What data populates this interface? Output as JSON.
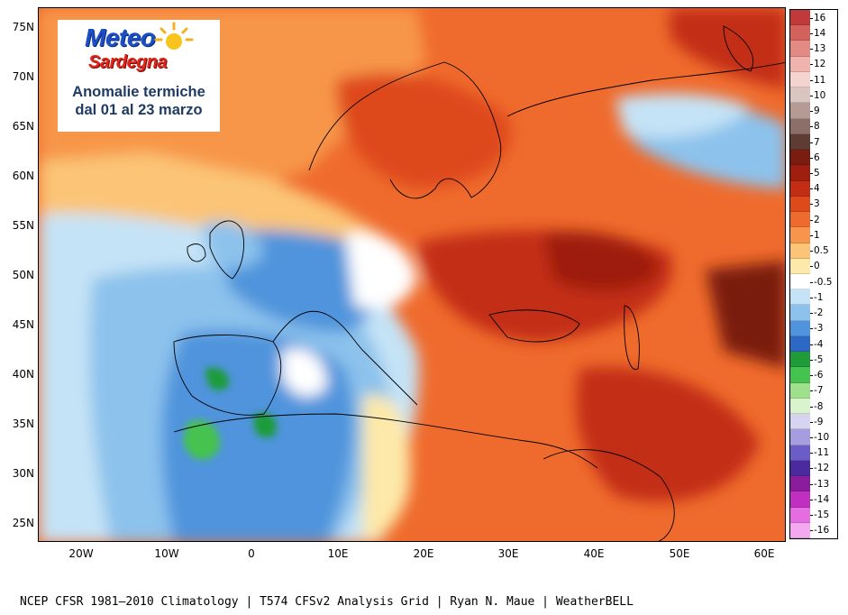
{
  "logo": {
    "brand_line1": "Meteo",
    "brand_line2": "Sardegna",
    "title_line1": "Anomalie termiche",
    "title_line2": "dal 01 al 23 marzo"
  },
  "axes": {
    "lat_labels": [
      "75N",
      "70N",
      "65N",
      "60N",
      "55N",
      "50N",
      "45N",
      "40N",
      "35N",
      "30N",
      "25N"
    ],
    "lon_labels": [
      "20W",
      "10W",
      "0",
      "10E",
      "20E",
      "30E",
      "40E",
      "50E",
      "60E"
    ]
  },
  "colorbar": {
    "levels": [
      {
        "label": "16",
        "color": "#c0393b"
      },
      {
        "label": "14",
        "color": "#d4625c"
      },
      {
        "label": "13",
        "color": "#e48a84"
      },
      {
        "label": "12",
        "color": "#f1b3ae"
      },
      {
        "label": "11",
        "color": "#f5d3cf"
      },
      {
        "label": "10",
        "color": "#d9c6c1"
      },
      {
        "label": "9",
        "color": "#b49c95"
      },
      {
        "label": "8",
        "color": "#8c6f68"
      },
      {
        "label": "7",
        "color": "#5e3b33"
      },
      {
        "label": "6",
        "color": "#7a1c10"
      },
      {
        "label": "5",
        "color": "#9e1f0f"
      },
      {
        "label": "4",
        "color": "#c32d13"
      },
      {
        "label": "3",
        "color": "#de4a1c"
      },
      {
        "label": "2",
        "color": "#ef6b2d"
      },
      {
        "label": "1",
        "color": "#f7964a"
      },
      {
        "label": "0.5",
        "color": "#fbc476"
      },
      {
        "label": "0",
        "color": "#fde9a9"
      },
      {
        "label": "-0.5",
        "color": "#ffffff"
      },
      {
        "label": "-1",
        "color": "#c5e3f6"
      },
      {
        "label": "-2",
        "color": "#8cc2ec"
      },
      {
        "label": "-3",
        "color": "#4f94dc"
      },
      {
        "label": "-4",
        "color": "#2d68c4"
      },
      {
        "label": "-5",
        "color": "#1f9b3a"
      },
      {
        "label": "-6",
        "color": "#45c24f"
      },
      {
        "label": "-7",
        "color": "#9fe08d"
      },
      {
        "label": "-8",
        "color": "#d9f3cd"
      },
      {
        "label": "-9",
        "color": "#d7d4f2"
      },
      {
        "label": "-10",
        "color": "#a59de0"
      },
      {
        "label": "-11",
        "color": "#6c5cc8"
      },
      {
        "label": "-12",
        "color": "#4b2aa0"
      },
      {
        "label": "-13",
        "color": "#8a1d9b"
      },
      {
        "label": "-14",
        "color": "#c02fc2"
      },
      {
        "label": "-15",
        "color": "#e46ee0"
      },
      {
        "label": "-16",
        "color": "#f3a8ef"
      }
    ]
  },
  "footer": {
    "credits": "NCEP CFSR 1981–2010 Climatology | T574 CFSv2 Analysis Grid | Ryan N. Maue | WeatherBELL"
  },
  "colors": {
    "background": "#ffffff",
    "border": "#000000",
    "ocean_warm": "#f7964a",
    "cool_anomaly": "#4f94dc"
  }
}
